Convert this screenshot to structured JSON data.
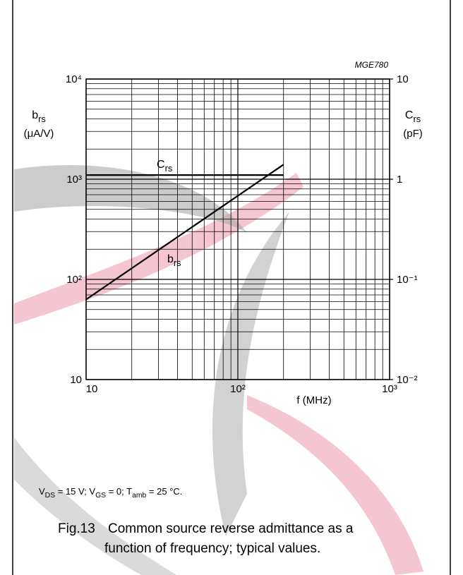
{
  "chart_data": {
    "type": "line",
    "code": "MGE780",
    "y_label": {
      "symbol": [
        "b",
        "rs"
      ],
      "unit": "(μA/V)"
    },
    "y2_label": {
      "symbol": [
        "C",
        "rs"
      ],
      "unit": "(pF)"
    },
    "x_label": "f (MHz)",
    "log_x": true,
    "log_y": true,
    "grid": true,
    "xlim": [
      10,
      1000
    ],
    "xticks": [
      10,
      {
        "value": 100,
        "label": "10²"
      },
      {
        "value": 1000,
        "label": "10³"
      }
    ],
    "ylim": [
      10,
      10000
    ],
    "yticks": [
      10,
      {
        "value": 100,
        "label": "10²"
      },
      {
        "value": 1000,
        "label": "10³"
      },
      {
        "value": 10000,
        "label": "10⁴"
      }
    ],
    "y2lim": [
      0.01,
      10
    ],
    "y2ticks": [
      {
        "value": 0.01,
        "label": "10⁻²"
      },
      {
        "value": 0.1,
        "label": "10⁻¹"
      },
      1,
      10
    ],
    "series": [
      {
        "name": [
          "C",
          "rs"
        ],
        "color": "#000000",
        "axis": "y2",
        "x": [
          10,
          200
        ],
        "values": [
          1.1,
          1.1
        ]
      },
      {
        "name": [
          "b",
          "rs"
        ],
        "color": "#000000",
        "x": [
          10,
          200
        ],
        "values": [
          63,
          1400
        ]
      }
    ],
    "conditions": [
      "V",
      "DS",
      " = 15 V; V",
      "GS",
      " = 0; T",
      "amb",
      " = 25 °C."
    ],
    "caption": {
      "number": "Fig.13",
      "lines": [
        "Common source reverse admittance as a",
        "function of frequency; typical values."
      ]
    }
  }
}
